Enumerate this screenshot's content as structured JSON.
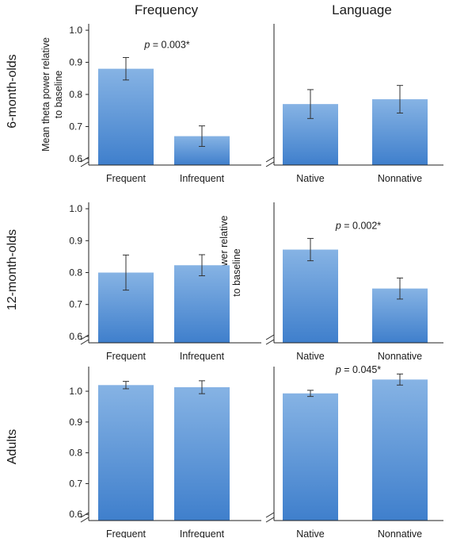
{
  "column_titles": [
    "Frequency",
    "Language"
  ],
  "row_labels": [
    "6-month-olds",
    "12-month-olds",
    "Adults"
  ],
  "ylabel": "Mean theta power relative to baseline",
  "colors": {
    "bar_top": "#86b3e4",
    "bar_bottom": "#3f7fcc",
    "axis": "#222222"
  },
  "chart_data": [
    {
      "type": "bar",
      "row": "6-month-olds",
      "column": "Frequency",
      "categories": [
        "Frequent",
        "Infrequent"
      ],
      "values": [
        0.88,
        0.67
      ],
      "errors": [
        0.035,
        0.032
      ],
      "ylim": [
        0.58,
        1.02
      ],
      "yticks": [
        "0.6",
        "0.7",
        "0.8",
        "0.9",
        "1.0"
      ],
      "annotation": "0.003*"
    },
    {
      "type": "bar",
      "row": "6-month-olds",
      "column": "Language",
      "categories": [
        "Native",
        "Nonnative"
      ],
      "values": [
        0.77,
        0.785
      ],
      "errors": [
        0.045,
        0.043
      ],
      "ylim": [
        0.58,
        1.02
      ],
      "yticks": [],
      "annotation": ""
    },
    {
      "type": "bar",
      "row": "12-month-olds",
      "column": "Frequency",
      "categories": [
        "Frequent",
        "Infrequent"
      ],
      "values": [
        0.8,
        0.823
      ],
      "errors": [
        0.055,
        0.033
      ],
      "ylim": [
        0.58,
        1.02
      ],
      "yticks": [
        "0.6",
        "0.7",
        "0.8",
        "0.9",
        "1.0"
      ],
      "annotation": ""
    },
    {
      "type": "bar",
      "row": "12-month-olds",
      "column": "Language",
      "categories": [
        "Native",
        "Nonnative"
      ],
      "values": [
        0.872,
        0.75
      ],
      "errors": [
        0.035,
        0.033
      ],
      "ylim": [
        0.58,
        1.02
      ],
      "yticks": [],
      "annotation": "0.002*"
    },
    {
      "type": "bar",
      "row": "Adults",
      "column": "Frequency",
      "categories": [
        "Frequent",
        "Infrequent"
      ],
      "values": [
        1.02,
        1.013
      ],
      "errors": [
        0.012,
        0.021
      ],
      "ylim": [
        0.58,
        1.08
      ],
      "yticks": [
        "0.6",
        "0.7",
        "0.8",
        "0.9",
        "1.0"
      ],
      "annotation": ""
    },
    {
      "type": "bar",
      "row": "Adults",
      "column": "Language",
      "categories": [
        "Native",
        "Nonnative"
      ],
      "values": [
        0.993,
        1.038
      ],
      "errors": [
        0.01,
        0.018
      ],
      "ylim": [
        0.58,
        1.08
      ],
      "yticks": [],
      "annotation": "0.045*"
    }
  ]
}
